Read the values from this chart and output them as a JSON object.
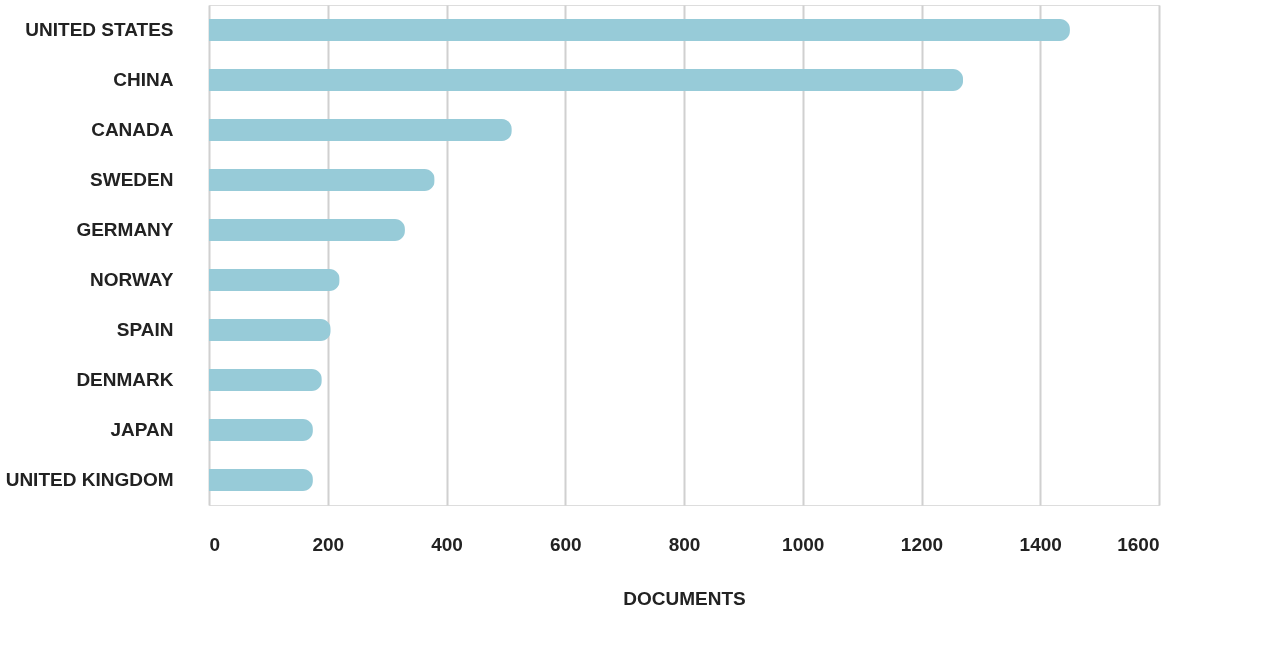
{
  "chart_data": {
    "type": "bar",
    "orientation": "horizontal",
    "xlabel": "DOCUMENTS",
    "categories": [
      "UNITED STATES",
      "CHINA",
      "CANADA",
      "SWEDEN",
      "GERMANY",
      "NORWAY",
      "SPAIN",
      "DENMARK",
      "JAPAN",
      "UNITED KINGDOM"
    ],
    "values": [
      1450,
      1270,
      510,
      380,
      330,
      220,
      205,
      190,
      175,
      175
    ],
    "color": "#97cbd8",
    "xlim": [
      0,
      1600
    ],
    "xticks": [
      0,
      200,
      400,
      600,
      800,
      1000,
      1200,
      1400,
      1600
    ],
    "grid": "x"
  }
}
